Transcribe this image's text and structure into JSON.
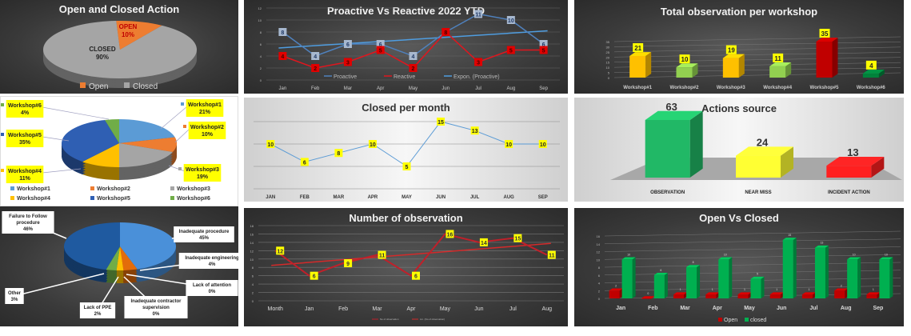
{
  "chart_data": [
    {
      "id": "open-closed-action",
      "type": "pie",
      "title": "Open and Closed Action",
      "slices": [
        {
          "label": "OPEN",
          "legend": "Open",
          "value": 10,
          "color": "#ed7d31"
        },
        {
          "label": "CLOSED",
          "legend": "Closed",
          "value": 90,
          "color": "#a5a5a5"
        }
      ],
      "unit": "%"
    },
    {
      "id": "workshop-share",
      "type": "pie",
      "title": "",
      "slices": [
        {
          "label": "Workshop#1",
          "value": 21,
          "color": "#5b9bd5"
        },
        {
          "label": "Workshop#2",
          "value": 10,
          "color": "#ed7d31"
        },
        {
          "label": "Workshop#3",
          "value": 19,
          "color": "#a5a5a5"
        },
        {
          "label": "Workshop#4",
          "value": 11,
          "color": "#ffc000"
        },
        {
          "label": "Workshop#5",
          "value": 35,
          "color": "#2f5fb3"
        },
        {
          "label": "Workshop#6",
          "value": 4,
          "color": "#70ad47"
        }
      ],
      "unit": "%"
    },
    {
      "id": "causes",
      "type": "pie",
      "title": "",
      "slices": [
        {
          "label": "Inadequate procedure",
          "value": 45,
          "color": "#4a90d9"
        },
        {
          "label": "Inadequate engineering",
          "value": 4,
          "color": "#e36c0a"
        },
        {
          "label": "Lack of attention",
          "value": 0,
          "color": "#a5a5a5"
        },
        {
          "label": "Inadequate contractor supervision",
          "value": 0,
          "color": "#7f6000"
        },
        {
          "label": "Lack of PPE",
          "value": 2,
          "color": "#ffc000"
        },
        {
          "label": "Other",
          "value": 3,
          "color": "#70ad47"
        },
        {
          "label": "Failure to Follow procedure",
          "value": 46,
          "color": "#1f5aa0"
        }
      ],
      "unit": "%"
    },
    {
      "id": "proactive-reactive",
      "type": "line",
      "title": "Proactive Vs Reactive 2022 YTD",
      "categories": [
        "Jan",
        "Feb",
        "Mar",
        "Apr",
        "May",
        "Jun",
        "Jul",
        "Aug",
        "Sep"
      ],
      "ylim": [
        0,
        12
      ],
      "ytick": 2,
      "grid": true,
      "legend": "bottom",
      "series": [
        {
          "name": "Proactive",
          "values": [
            8,
            4,
            6,
            6,
            4,
            8,
            11,
            10,
            6
          ],
          "color": "#4f81bd"
        },
        {
          "name": "Reactive",
          "values": [
            4,
            2,
            3,
            5,
            2,
            8,
            3,
            5,
            5
          ],
          "color": "#e0161e"
        }
      ],
      "trendline": {
        "name": "Expon. (Proactive)",
        "of": "Proactive",
        "kind": "exponential",
        "color": "#4f9de0"
      }
    },
    {
      "id": "closed-per-month",
      "type": "line",
      "title": "Closed per month",
      "categories": [
        "JAN",
        "FEB",
        "MAR",
        "APR",
        "MAY",
        "JUN",
        "JUL",
        "AUG",
        "SEP"
      ],
      "ylim": [
        0,
        15
      ],
      "grid": true,
      "series": [
        {
          "values": [
            10,
            6,
            8,
            10,
            5,
            15,
            13,
            10,
            10
          ],
          "color": "#5b9bd5"
        }
      ]
    },
    {
      "id": "number-of-observation",
      "type": "line",
      "title": "Number of observation",
      "categories": [
        "Month",
        "Jan",
        "Feb",
        "Mar",
        "Apr",
        "May",
        "Jun",
        "Jul",
        "Aug"
      ],
      "ylim": [
        0,
        18
      ],
      "ytick": 2,
      "grid": true,
      "legend": "bottom",
      "series": [
        {
          "name": "No of observation",
          "values": [
            12,
            6,
            9,
            11,
            6,
            16,
            14,
            15,
            11
          ],
          "color": "#c0202a"
        }
      ],
      "trendline": {
        "name": "Lin. (No of observation)",
        "of": "No of observation",
        "kind": "linear",
        "color": "#d42a2a"
      }
    },
    {
      "id": "total-per-workshop",
      "type": "bar",
      "title": "Total observation per workshop",
      "categories": [
        "Workshop#1",
        "Workshop#2",
        "Workshop#3",
        "Workshop#4",
        "Workshop#5",
        "Workshop#6"
      ],
      "values": [
        21,
        10,
        19,
        11,
        35,
        4
      ],
      "colors": [
        "#ffc000",
        "#92d050",
        "#ffc000",
        "#92d050",
        "#c00000",
        "#00823b"
      ],
      "ylim": [
        0,
        35
      ],
      "ytick": 5,
      "grid": true
    },
    {
      "id": "actions-source",
      "type": "bar",
      "title": "Actions source",
      "categories": [
        "OBSERVATION",
        "NEAR MISS",
        "INCIDENT ACTION"
      ],
      "values": [
        63,
        24,
        13
      ],
      "colors": [
        "#21b866",
        "#ffff33",
        "#ff2020"
      ],
      "ylim": [
        0,
        70
      ],
      "ytick": 10
    },
    {
      "id": "open-vs-closed",
      "type": "bar",
      "title": "Open Vs Closed",
      "categories": [
        "Jan",
        "Feb",
        "Mar",
        "Apr",
        "May",
        "Jun",
        "Jul",
        "Aug",
        "Sep"
      ],
      "ylim": [
        0,
        16
      ],
      "ytick": 2,
      "grid": true,
      "legend": "bottom",
      "series": [
        {
          "name": "Open",
          "values": [
            2,
            0,
            1,
            1,
            1,
            1,
            1,
            2,
            1
          ],
          "color": "#c00000"
        },
        {
          "name": "closed",
          "values": [
            10,
            6,
            8,
            10,
            5,
            15,
            13,
            10,
            10
          ],
          "color": "#00b050"
        }
      ]
    }
  ]
}
